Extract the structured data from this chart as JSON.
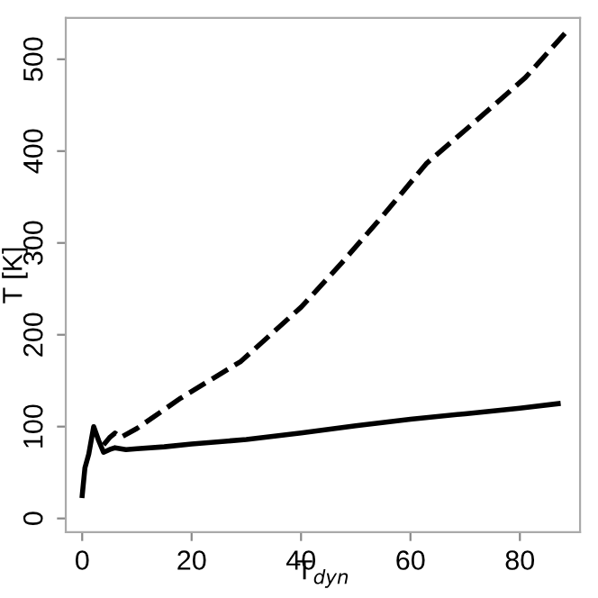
{
  "chart_data": {
    "type": "line",
    "xlabel": "T$_{dyn}$",
    "ylabel": "T [K]",
    "xlim": [
      -3,
      91
    ],
    "ylim": [
      -15,
      545
    ],
    "xticks": [
      0,
      20,
      40,
      60,
      80
    ],
    "yticks": [
      0,
      100,
      200,
      300,
      400,
      500
    ],
    "grid": false,
    "legend": false,
    "series": [
      {
        "color": "#000000",
        "line_style": "solid",
        "x": [
          0,
          0.5,
          1.2,
          2.1,
          3,
          3.9,
          5,
          6,
          8,
          10,
          15,
          20,
          30,
          40,
          50,
          60,
          70,
          80,
          87
        ],
        "values": [
          25,
          55,
          70,
          100,
          85,
          72,
          75,
          77,
          75,
          76,
          78,
          81,
          86,
          93,
          101,
          108,
          114,
          120,
          125
        ]
      },
      {
        "color": "#000000",
        "line_style": "dashed",
        "x": [
          3.9,
          5,
          6,
          7,
          10,
          18,
          29,
          40,
          47.4,
          55,
          63,
          72,
          81,
          88.5
        ],
        "values": [
          80,
          88,
          93,
          88,
          98,
          131,
          171,
          230,
          278,
          330,
          387,
          433,
          480,
          530
        ]
      }
    ]
  }
}
